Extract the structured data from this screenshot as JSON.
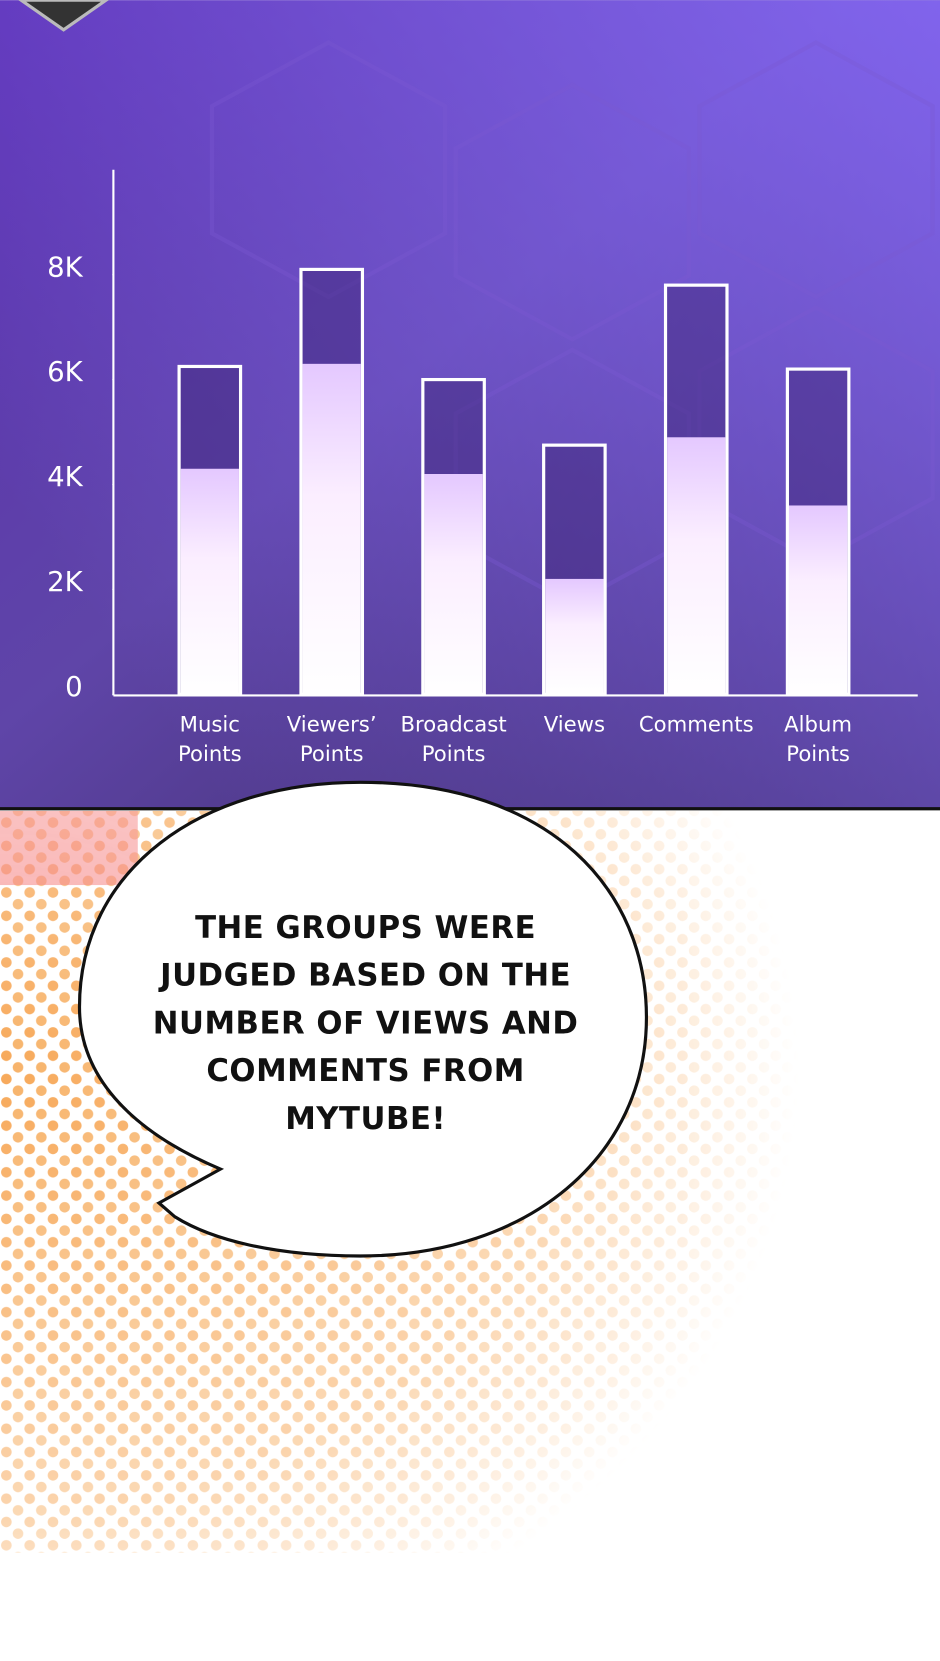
{
  "chart_data": {
    "type": "bar",
    "categories": [
      "Music Points",
      "Viewers’ Points",
      "Broadcast Points",
      "Views",
      "Comments",
      "Album Points"
    ],
    "series": [
      {
        "color": "#ffffff",
        "values": [
          6250,
          8100,
          6000,
          4750,
          7800,
          6200
        ]
      },
      {
        "color": "#f2d6ff",
        "values": [
          4300,
          6300,
          4200,
          2200,
          4900,
          3600
        ]
      }
    ],
    "ylim": [
      0,
      10000
    ],
    "yticks": [
      0,
      {
        "value": 2000,
        "label": "2K"
      },
      {
        "value": 4000,
        "label": "4K"
      },
      {
        "value": 6000,
        "label": "6K"
      },
      {
        "value": 8000,
        "label": "8K"
      }
    ]
  },
  "speech_bubble": {
    "lines": [
      "THE GROUPS WERE",
      "JUDGED BASED ON THE",
      "NUMBER OF VIEWS AND",
      "COMMENTS FROM",
      "MYTUBE!"
    ]
  }
}
